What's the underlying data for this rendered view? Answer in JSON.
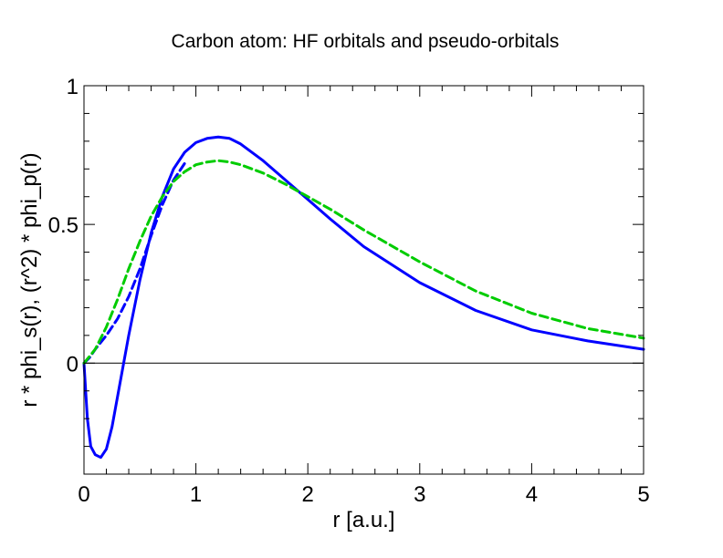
{
  "chart_data": {
    "type": "line",
    "title": "Carbon atom: HF orbitals and pseudo-orbitals",
    "xlabel": "r [a.u.]",
    "ylabel": "r * phi_s(r),  (r^2) * phi_p(r)",
    "xlim": [
      0,
      5
    ],
    "ylim": [
      -0.4,
      1
    ],
    "xticks": [
      0,
      1,
      2,
      3,
      4,
      5
    ],
    "yticks": [
      0,
      0.5,
      1
    ],
    "xtick_labels": [
      "0",
      "1",
      "2",
      "3",
      "4",
      "5"
    ],
    "ytick_labels": [
      "0",
      "0.5",
      "1"
    ],
    "grid": false,
    "zero_line": true,
    "series": [
      {
        "color": "#0000ff",
        "style": "solid",
        "x": [
          0,
          0.03,
          0.06,
          0.1,
          0.15,
          0.2,
          0.25,
          0.3,
          0.35,
          0.4,
          0.5,
          0.6,
          0.7,
          0.8,
          0.9,
          1.0,
          1.1,
          1.2,
          1.3,
          1.4,
          1.6,
          1.8,
          2.0,
          2.2,
          2.5,
          3.0,
          3.5,
          4.0,
          4.5,
          5.0
        ],
        "y": [
          0,
          -0.2,
          -0.3,
          -0.33,
          -0.34,
          -0.31,
          -0.23,
          -0.12,
          -0.01,
          0.1,
          0.3,
          0.47,
          0.6,
          0.7,
          0.76,
          0.795,
          0.81,
          0.815,
          0.81,
          0.79,
          0.73,
          0.66,
          0.59,
          0.52,
          0.42,
          0.29,
          0.19,
          0.12,
          0.08,
          0.05
        ]
      },
      {
        "color": "#0000ff",
        "style": "dashed",
        "x": [
          0,
          0.05,
          0.1,
          0.2,
          0.3,
          0.4,
          0.5,
          0.6,
          0.7,
          0.8,
          0.9
        ],
        "y": [
          0,
          0.02,
          0.05,
          0.1,
          0.16,
          0.24,
          0.34,
          0.46,
          0.57,
          0.66,
          0.72
        ]
      },
      {
        "color": "#00cc00",
        "style": "dashed",
        "x": [
          0,
          0.1,
          0.2,
          0.3,
          0.4,
          0.5,
          0.6,
          0.7,
          0.8,
          0.9,
          1.0,
          1.1,
          1.2,
          1.3,
          1.4,
          1.6,
          1.8,
          2.0,
          2.2,
          2.5,
          3.0,
          3.5,
          4.0,
          4.5,
          5.0
        ],
        "y": [
          0,
          0.05,
          0.13,
          0.23,
          0.34,
          0.44,
          0.53,
          0.6,
          0.655,
          0.69,
          0.715,
          0.725,
          0.73,
          0.725,
          0.715,
          0.685,
          0.645,
          0.6,
          0.555,
          0.48,
          0.365,
          0.26,
          0.18,
          0.125,
          0.09
        ]
      }
    ]
  }
}
